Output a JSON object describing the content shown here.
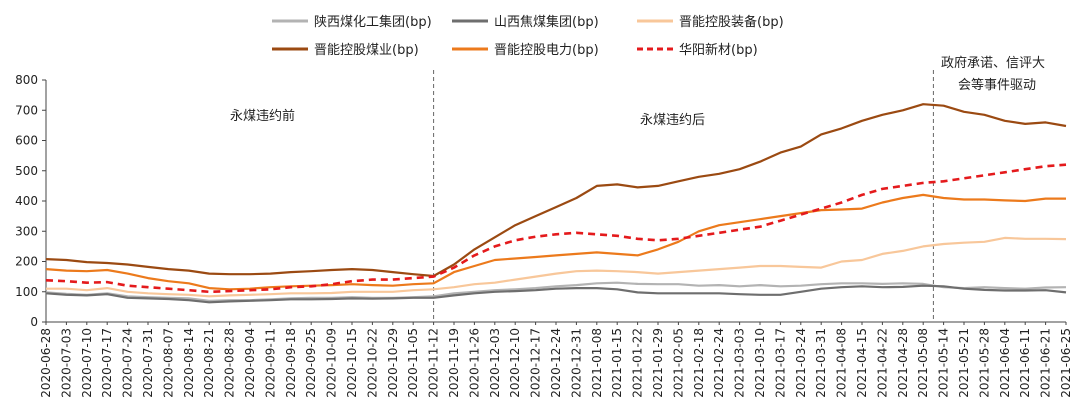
{
  "chart_data": {
    "type": "line",
    "title": "",
    "xlabel": "",
    "ylabel": "",
    "ylim": [
      0,
      800
    ],
    "yticks": [
      0,
      100,
      200,
      300,
      400,
      500,
      600,
      700,
      800
    ],
    "grid": false,
    "legend_position": "top",
    "x": [
      "2020-06-28",
      "2020-07-03",
      "2020-07-10",
      "2020-07-17",
      "2020-07-24",
      "2020-07-31",
      "2020-08-07",
      "2020-08-14",
      "2020-08-21",
      "2020-08-28",
      "2020-09-04",
      "2020-09-11",
      "2020-09-18",
      "2020-09-25",
      "2020-10-09",
      "2020-10-15",
      "2020-10-22",
      "2020-10-29",
      "2020-11-05",
      "2020-11-12",
      "2020-11-19",
      "2020-11-26",
      "2020-12-03",
      "2020-12-10",
      "2020-12-17",
      "2020-12-24",
      "2020-12-31",
      "2021-01-08",
      "2021-01-15",
      "2021-01-22",
      "2021-01-29",
      "2021-02-05",
      "2021-02-18",
      "2021-02-24",
      "2021-03-03",
      "2021-03-10",
      "2021-03-17",
      "2021-03-24",
      "2021-03-31",
      "2021-04-08",
      "2021-04-15",
      "2021-04-22",
      "2021-04-28",
      "2021-05-08",
      "2021-05-14",
      "2021-05-21",
      "2021-05-28",
      "2021-06-04",
      "2021-06-11",
      "2021-06-21",
      "2021-06-25"
    ],
    "series": [
      {
        "name": "陕西煤化工集团(bp)",
        "color": "#b3b3b3",
        "dash": "solid",
        "values": [
          98,
          93,
          90,
          95,
          85,
          82,
          80,
          78,
          70,
          72,
          72,
          75,
          78,
          80,
          80,
          82,
          80,
          80,
          82,
          85,
          95,
          100,
          105,
          108,
          112,
          118,
          122,
          128,
          130,
          126,
          125,
          125,
          120,
          122,
          118,
          122,
          118,
          120,
          125,
          128,
          128,
          126,
          128,
          126,
          115,
          112,
          115,
          112,
          110,
          114,
          115
        ]
      },
      {
        "name": "山西焦煤集团(bp)",
        "color": "#6e6e6e",
        "dash": "solid",
        "values": [
          95,
          90,
          88,
          92,
          80,
          78,
          76,
          72,
          65,
          68,
          70,
          72,
          75,
          75,
          76,
          78,
          77,
          78,
          80,
          80,
          88,
          95,
          100,
          102,
          105,
          110,
          112,
          112,
          108,
          98,
          95,
          95,
          95,
          95,
          92,
          90,
          90,
          100,
          110,
          115,
          118,
          115,
          116,
          120,
          118,
          110,
          106,
          104,
          104,
          105,
          98
        ]
      },
      {
        "name": "晋能控股装备(bp)",
        "color": "#f8c79a",
        "dash": "solid",
        "values": [
          110,
          110,
          105,
          112,
          100,
          95,
          92,
          90,
          85,
          88,
          90,
          92,
          95,
          95,
          96,
          100,
          100,
          100,
          105,
          108,
          115,
          125,
          130,
          140,
          150,
          160,
          168,
          170,
          168,
          165,
          160,
          165,
          170,
          175,
          180,
          185,
          185,
          182,
          180,
          200,
          205,
          225,
          235,
          250,
          258,
          262,
          265,
          278,
          275,
          275,
          274
        ]
      },
      {
        "name": "晋能控股煤业(bp)",
        "color": "#9b4a12",
        "dash": "solid",
        "values": [
          208,
          205,
          198,
          195,
          190,
          182,
          175,
          170,
          160,
          158,
          158,
          160,
          165,
          168,
          172,
          175,
          172,
          165,
          158,
          152,
          190,
          240,
          280,
          320,
          350,
          380,
          410,
          450,
          455,
          445,
          450,
          465,
          480,
          490,
          505,
          530,
          560,
          580,
          620,
          640,
          665,
          685,
          700,
          720,
          715,
          695,
          685,
          665,
          655,
          660,
          648
        ]
      },
      {
        "name": "晋能控股电力(bp)",
        "color": "#ec7a1c",
        "dash": "solid",
        "values": [
          175,
          170,
          168,
          172,
          160,
          145,
          135,
          128,
          112,
          108,
          110,
          115,
          118,
          120,
          122,
          125,
          122,
          120,
          125,
          128,
          165,
          185,
          205,
          210,
          215,
          220,
          225,
          230,
          225,
          220,
          240,
          265,
          300,
          320,
          330,
          340,
          350,
          360,
          370,
          372,
          375,
          395,
          410,
          420,
          410,
          405,
          405,
          402,
          400,
          408,
          408
        ]
      },
      {
        "name": "华阳新材(bp)",
        "color": "#e41a1c",
        "dash": "dash",
        "values": [
          138,
          135,
          130,
          132,
          120,
          115,
          110,
          105,
          100,
          102,
          105,
          108,
          115,
          118,
          125,
          135,
          140,
          140,
          145,
          150,
          180,
          220,
          250,
          270,
          282,
          290,
          295,
          290,
          285,
          275,
          270,
          275,
          285,
          295,
          305,
          315,
          335,
          355,
          375,
          395,
          420,
          440,
          450,
          460,
          465,
          475,
          485,
          495,
          505,
          515,
          520
        ]
      }
    ],
    "annotations": [
      {
        "text": "永煤违约前",
        "after_index": 0
      },
      {
        "text": "永煤违约后",
        "after_index": 19
      },
      {
        "text": "政府承诺、信评大",
        "after_index": 43
      },
      {
        "text": "会等事件驱动",
        "after_index": 43
      }
    ],
    "vlines_at_dates": [
      "2020-11-12",
      "2021-05-11"
    ]
  }
}
